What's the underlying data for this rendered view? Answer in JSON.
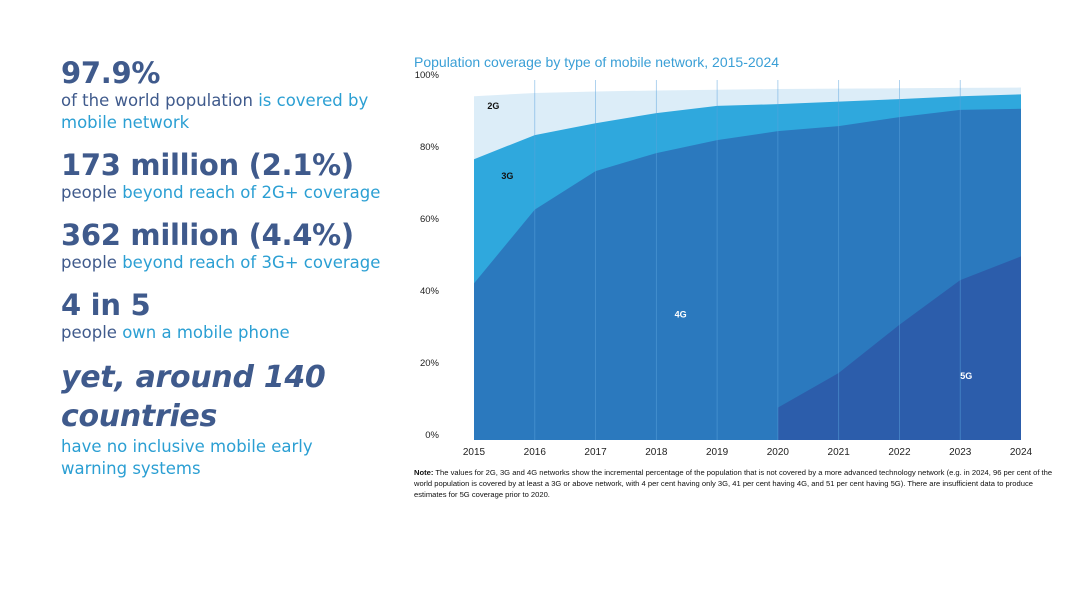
{
  "stats": [
    {
      "headline": "97.9%",
      "desc_plain": "of the world population ",
      "desc_highlight": "is covered by mobile network"
    },
    {
      "headline": "173 million (2.1%)",
      "desc_plain": "people ",
      "desc_highlight": "beyond reach of 2G+ coverage"
    },
    {
      "headline": "362 million (4.4%)",
      "desc_plain": "people ",
      "desc_highlight": "beyond reach of 3G+ coverage"
    },
    {
      "headline": "4 in 5",
      "desc_plain": "people ",
      "desc_highlight": "own a mobile phone"
    },
    {
      "headline": "yet, around 140 countries",
      "desc_plain": "",
      "desc_highlight": "have no inclusive mobile early warning systems"
    }
  ],
  "colors": {
    "2G": "#dcedf8",
    "3G": "#2fa8dd",
    "4G": "#2b79be",
    "5G": "#2c5dab",
    "gridline": "#5aa3dc",
    "headline": "#3f5a8c",
    "highlight": "#2b9fd3",
    "title": "#3a9fd6"
  },
  "note": {
    "label": "Note:",
    "text": " The values for 2G, 3G and 4G networks show the incremental percentage of the population that is not covered by a more advanced technology network (e.g. in 2024, 96 per cent of the world population is covered by at least a 3G or above network, with 4 per cent having only 3G, 41 per cent having 4G, and 51 per cent having 5G). There are insufficient data to produce estimates for 5G coverage prior to 2020."
  },
  "chart_data": {
    "type": "area",
    "stacked": true,
    "title": "Population coverage by type of mobile network, 2015-2024",
    "xlabel": "",
    "ylabel": "",
    "ylim": [
      0,
      100
    ],
    "yticks": [
      "0%",
      "20%",
      "40%",
      "60%",
      "80%",
      "100%"
    ],
    "x": [
      "2015",
      "2016",
      "2017",
      "2018",
      "2019",
      "2020",
      "2021",
      "2022",
      "2023",
      "2024"
    ],
    "series_cumulative_top": [
      {
        "name": "2G",
        "label": "2G",
        "values": [
          95.5,
          96.4,
          96.8,
          97.1,
          97.3,
          97.5,
          97.6,
          97.7,
          97.8,
          97.9
        ]
      },
      {
        "name": "3G",
        "label": "3G",
        "values": [
          78,
          84.7,
          88,
          90.8,
          92.8,
          93.3,
          94,
          94.7,
          95.5,
          96
        ]
      },
      {
        "name": "4G",
        "label": "4G",
        "values": [
          43.5,
          64,
          74.7,
          79.7,
          83.3,
          85.8,
          87.2,
          89.7,
          91.7,
          92
        ]
      },
      {
        "name": "5G",
        "label": "5G",
        "values": [
          null,
          null,
          null,
          null,
          null,
          9,
          18.6,
          32,
          44.4,
          51
        ]
      }
    ],
    "grid": "vertical lines at each year",
    "legend": "inline labels"
  }
}
